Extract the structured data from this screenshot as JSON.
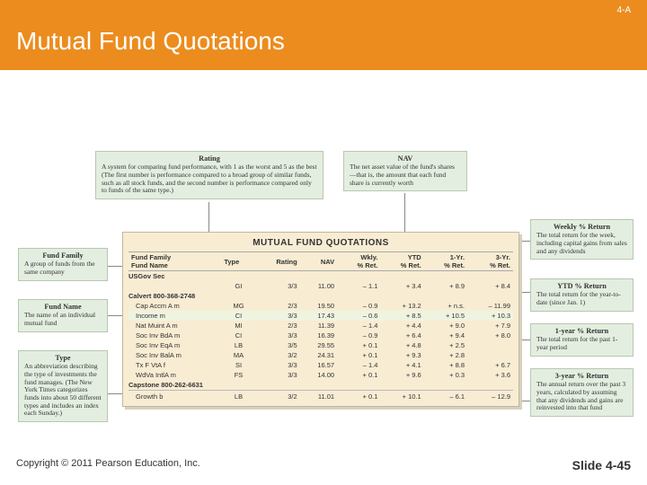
{
  "header": {
    "page_code": "4-A",
    "title": "Mutual Fund Quotations"
  },
  "callouts": {
    "rating": {
      "title": "Rating",
      "text": "A system for comparing fund performance, with 1 as the worst and 5 as the best (The first number is performance compared to a broad group of similar funds, such as all stock funds, and the second number is performance compared only to funds of the same type.)"
    },
    "nav": {
      "title": "NAV",
      "text": "The net asset value of the fund's shares—that is, the amount that each fund share is currently worth"
    },
    "fund_family": {
      "title": "Fund Family",
      "text": "A group of funds from the same company"
    },
    "fund_name": {
      "title": "Fund Name",
      "text": "The name of an individual mutual fund"
    },
    "type": {
      "title": "Type",
      "text": "An abbreviation describing the type of investments the fund manages. (The New York Times categorizes funds into about 50 different types and includes an index each Sunday.)"
    },
    "weekly": {
      "title": "Weekly % Return",
      "text": "The total return for the week, including capital gains from sales and any dividends"
    },
    "ytd": {
      "title": "YTD % Return",
      "text": "The total return for the year-to-date (since Jan. 1)"
    },
    "y1": {
      "title": "1-year % Return",
      "text": "The total return for the past 1-year period"
    },
    "y3": {
      "title": "3-year % Return",
      "text": "The annual return over the past 3 years, calculated by assuming that any dividends and gains are reinvested into that fund"
    }
  },
  "table": {
    "title": "MUTUAL FUND QUOTATIONS",
    "columns": [
      "Fund Family\nFund Name",
      "Type",
      "Rating",
      "NAV",
      "Wkly.\n% Ret.",
      "YTD\n% Ret.",
      "1-Yr.\n% Ret.",
      "3-Yr.\n% Ret."
    ],
    "groups": [
      {
        "label": "USGov Sec",
        "rows": [
          {
            "name": "",
            "type": "GI",
            "rating": "3/3",
            "nav": "11.00",
            "w": "– 1.1",
            "ytd": "+ 3.4",
            "y1": "+ 8.9",
            "y3": "+ 8.4"
          }
        ]
      },
      {
        "label": "Calvert 800-368-2748",
        "rows": [
          {
            "name": "Cap Accm A m",
            "type": "MG",
            "rating": "2/3",
            "nav": "19.50",
            "w": "– 0.9",
            "ytd": "+ 13.2",
            "y1": "+ n.s.",
            "y3": "– 11.99"
          },
          {
            "name": "Income m",
            "type": "CI",
            "rating": "3/3",
            "nav": "17.43",
            "w": "– 0.6",
            "ytd": "+ 8.5",
            "y1": "+ 10.5",
            "y3": "+ 10.3",
            "hl": true
          },
          {
            "name": "Nat Muint A m",
            "type": "MI",
            "rating": "2/3",
            "nav": "11.39",
            "w": "– 1.4",
            "ytd": "+ 4.4",
            "y1": "+ 9.0",
            "y3": "+ 7.9"
          },
          {
            "name": "Soc Inv BdA m",
            "type": "CI",
            "rating": "3/3",
            "nav": "16.39",
            "w": "– 0.9",
            "ytd": "+ 6.4",
            "y1": "+ 9.4",
            "y3": "+ 8.0"
          },
          {
            "name": "Soc Inv EqA m",
            "type": "LB",
            "rating": "3/5",
            "nav": "29.55",
            "w": "+ 0.1",
            "ytd": "+ 4.8",
            "y1": "+ 2.5",
            "y3": ""
          },
          {
            "name": "Soc Inv BalA m",
            "type": "MA",
            "rating": "3/2",
            "nav": "24.31",
            "w": "+ 0.1",
            "ytd": "+ 9.3",
            "y1": "+ 2.8",
            "y3": ""
          },
          {
            "name": "Tx F VtA f",
            "type": "SI",
            "rating": "3/3",
            "nav": "16.57",
            "w": "– 1.4",
            "ytd": "+ 4.1",
            "y1": "+ 8.8",
            "y3": "+ 6.7"
          },
          {
            "name": "WdVa IntlA m",
            "type": "FS",
            "rating": "3/3",
            "nav": "14.00",
            "w": "+ 0.1",
            "ytd": "+ 9.6",
            "y1": "+ 0.3",
            "y3": "+ 3.6"
          }
        ]
      },
      {
        "label": "Capstone 800-262-6631",
        "rows": [
          {
            "name": "Growth b",
            "type": "LB",
            "rating": "3/2",
            "nav": "11.01",
            "w": "+ 0.1",
            "ytd": "+ 10.1",
            "y1": "– 6.1",
            "y3": "– 12.9",
            "last": true
          }
        ]
      }
    ]
  },
  "footer": {
    "copyright": "Copyright © 2011 Pearson Education, Inc.",
    "slide": "Slide 4-45"
  }
}
